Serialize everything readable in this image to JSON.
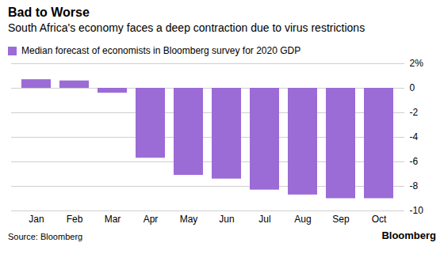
{
  "chart_data": {
    "type": "bar",
    "title": "Bad to Worse",
    "subtitle": "South Africa's economy faces a deep contraction due to virus restrictions",
    "categories": [
      "Jan",
      "Feb",
      "Mar",
      "Apr",
      "May",
      "Jun",
      "Jul",
      "Aug",
      "Sep",
      "Oct"
    ],
    "series": [
      {
        "name": "Median forecast of economists in Bloomberg survey for 2020 GDP",
        "color": "#9b6bd6",
        "values": [
          0.7,
          0.6,
          -0.4,
          -5.7,
          -7.1,
          -7.4,
          -8.3,
          -8.7,
          -9.0,
          -9.0
        ]
      }
    ],
    "ylim": [
      -10,
      2
    ],
    "yticks": [
      {
        "value": 2,
        "label": "2%"
      },
      0,
      -2,
      -4,
      -6,
      -8,
      -10
    ],
    "grid": true,
    "legend": "top",
    "source": "Source: Bloomberg",
    "credit": "Bloomberg"
  }
}
